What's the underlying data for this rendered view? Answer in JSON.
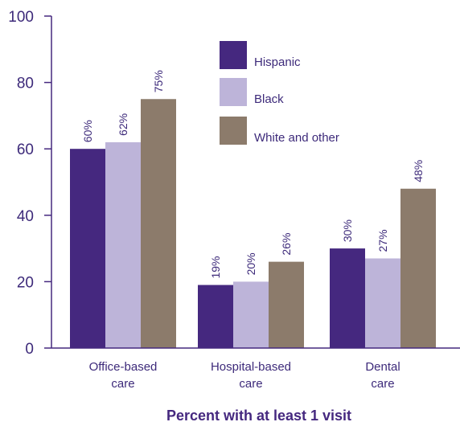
{
  "chart_data": {
    "type": "bar",
    "categories": [
      [
        "Office-based",
        "care"
      ],
      [
        "Hospital-based",
        "care"
      ],
      [
        "Dental",
        "care"
      ]
    ],
    "series": [
      {
        "name": "Hispanic",
        "values": [
          60,
          19,
          30
        ],
        "labels": [
          "60%",
          "19%",
          "30%"
        ]
      },
      {
        "name": "Black",
        "values": [
          62,
          20,
          27
        ],
        "labels": [
          "62%",
          "20%",
          "27%"
        ]
      },
      {
        "name": "White and other",
        "values": [
          75,
          26,
          48
        ],
        "labels": [
          "75%",
          "26%",
          "48%"
        ]
      }
    ],
    "colors": [
      "#45287f",
      "#bdb4d9",
      "#8c7b6b"
    ],
    "xlabel": "Percent with at least 1 visit",
    "ylabel": "",
    "ylim": [
      0,
      100
    ],
    "yticks": [
      "0",
      "20",
      "40",
      "60",
      "80",
      "100"
    ],
    "grid": false,
    "legend_position": "top-center"
  }
}
